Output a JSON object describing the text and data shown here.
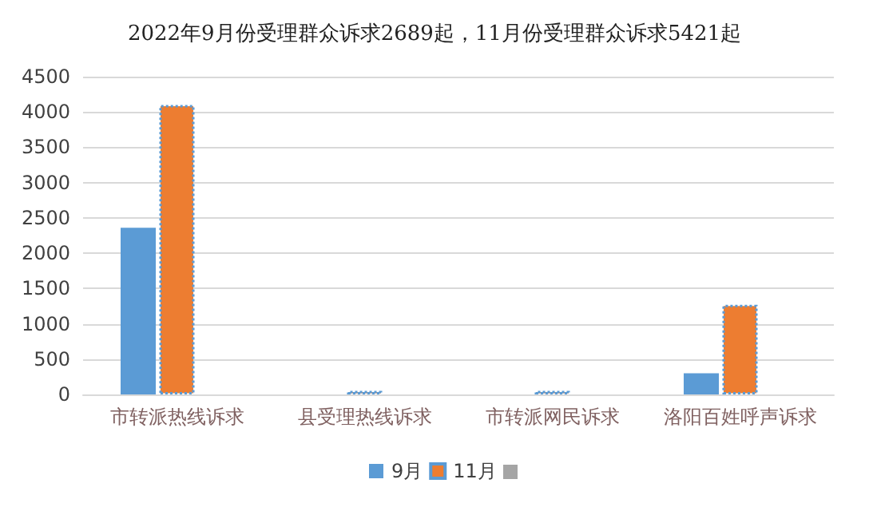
{
  "chart_data": {
    "type": "bar",
    "title": "2022年9月份受理群众诉求2689起，11月份受理群众诉求5421起",
    "categories": [
      "市转派热线诉求",
      "县受理热线诉求",
      "市转派网民诉求",
      "洛阳百姓呼声诉求"
    ],
    "series": [
      {
        "name": "9月",
        "color": "#5b9bd5",
        "values": [
          2360,
          null,
          null,
          300
        ]
      },
      {
        "name": "11月",
        "color": "#ed7d31",
        "values": [
          4100,
          50,
          50,
          1270
        ]
      },
      {
        "color": "#a5a5a5",
        "values": [
          null,
          null,
          null,
          null
        ]
      }
    ],
    "ylim": [
      0,
      4500
    ],
    "yticks": [
      0,
      500,
      1000,
      1500,
      2000,
      2500,
      3000,
      3500,
      4000,
      4500
    ],
    "grid": "y",
    "legend": "bottom"
  }
}
